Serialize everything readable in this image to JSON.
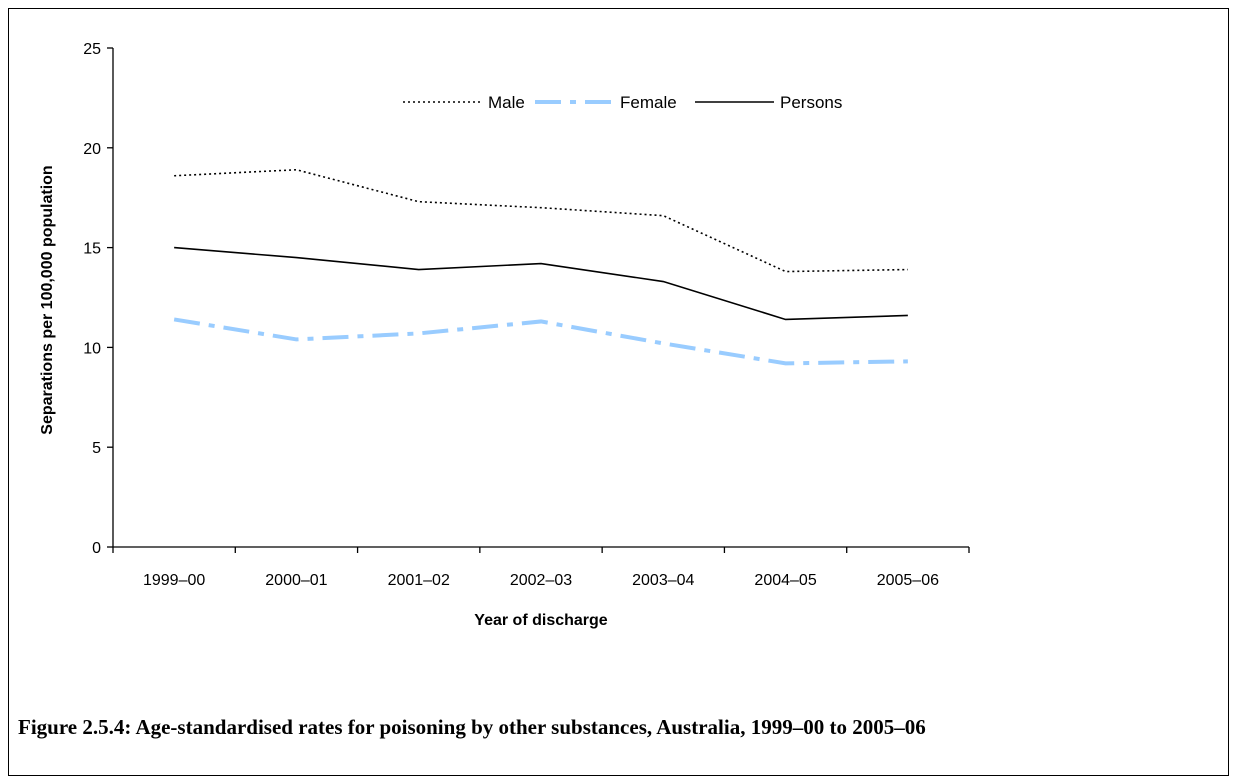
{
  "caption": "Figure 2.5.4: Age-standardised rates for poisoning by other substances, Australia, 1999–00 to 2005–06",
  "chart_data": {
    "type": "line",
    "title": "",
    "xlabel": "Year of discharge",
    "ylabel": "Separations per 100,000 population",
    "ylim": [
      0,
      25
    ],
    "yticks": [
      0,
      5,
      10,
      15,
      20,
      25
    ],
    "categories": [
      "1999–00",
      "2000–01",
      "2001–02",
      "2002–03",
      "2003–04",
      "2004–05",
      "2005–06"
    ],
    "series": [
      {
        "name": "Male",
        "values": [
          18.6,
          18.9,
          17.3,
          17.0,
          16.6,
          13.8,
          13.9
        ],
        "color": "#000000",
        "style": "dotted"
      },
      {
        "name": "Female",
        "values": [
          11.4,
          10.4,
          10.7,
          11.3,
          10.2,
          9.2,
          9.3
        ],
        "color": "#99ccff",
        "style": "dash-dot"
      },
      {
        "name": "Persons",
        "values": [
          15.0,
          14.5,
          13.9,
          14.2,
          13.3,
          11.4,
          11.6
        ],
        "color": "#000000",
        "style": "solid"
      }
    ],
    "legend_position": "top-center",
    "grid": false
  }
}
